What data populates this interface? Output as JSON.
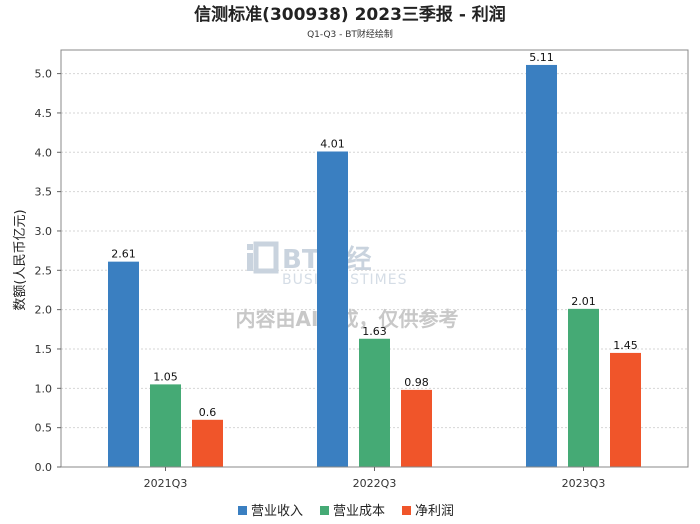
{
  "chart_data": {
    "type": "bar",
    "title": "信测标准(300938) 2023三季报 - 利润",
    "subtitle": "Q1-Q3 - BT财经绘制",
    "ylabel": "数额(人民币亿元)",
    "xlabel": "",
    "categories": [
      "2021Q3",
      "2022Q3",
      "2023Q3"
    ],
    "ylim": [
      0,
      5.3
    ],
    "yticks": [
      0.0,
      0.5,
      1.0,
      1.5,
      2.0,
      2.5,
      3.0,
      3.5,
      4.0,
      4.5,
      5.0
    ],
    "grid": true,
    "legend_position": "bottom",
    "series": [
      {
        "name": "营业收入",
        "color": "#3a7fc1",
        "values": [
          2.61,
          4.01,
          5.11
        ],
        "labels": [
          "2.61",
          "4.01",
          "5.11"
        ]
      },
      {
        "name": "营业成本",
        "color": "#45aa75",
        "values": [
          1.05,
          1.63,
          2.01
        ],
        "labels": [
          "1.05",
          "1.63",
          "2.01"
        ]
      },
      {
        "name": "净利润",
        "color": "#f0552a",
        "values": [
          0.6,
          0.98,
          1.45
        ],
        "labels": [
          "0.6",
          "0.98",
          "1.45"
        ]
      }
    ]
  },
  "watermark": {
    "brand": "BT财经",
    "brand_sub": "BUSINESSTIMES",
    "notice": "内容由AI生成，仅供参考"
  }
}
